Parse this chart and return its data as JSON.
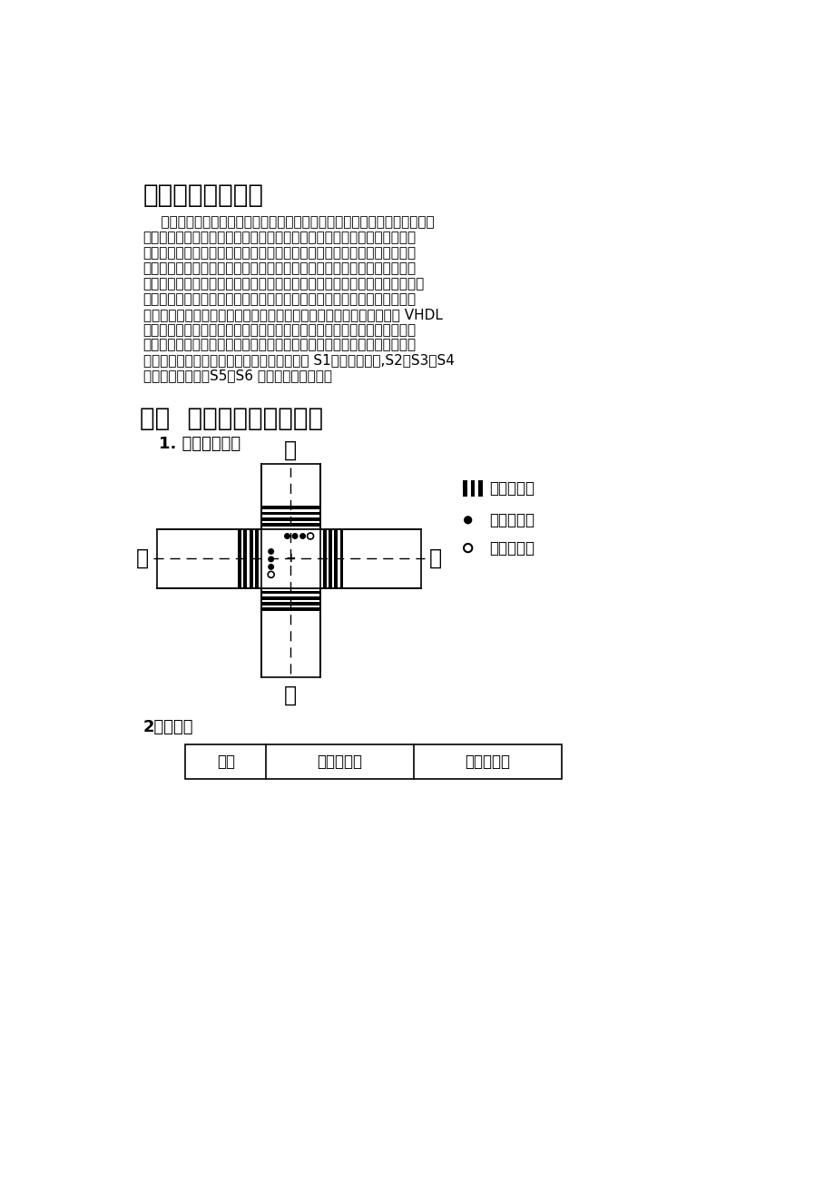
{
  "title3": "三、设计方案选择",
  "lines3": [
    "    由于该交通控制电路比较复杂，用现有库元器件可能导致耗用较多器件且其",
    "功能又不能完全达到设计要求，还可能出现其他的意想不到的情况，造成电",
    "路复杂，设计困难，难以排错等问题。而由于该系统的状态有限而且简单可",
    "以一一列举，故采用状态机设计方案。状态机设计使得设计更为简单明了，",
    "系统容错能力也大为提升，而且状态机顺序控制灵活，结构简单，便于修改，",
    "同时其对付竞争冒险的现象能力很强，运行速度快，使其成为数字系统设计",
    "中的重要部分，也是调高效率的重要途径。因此本次设计采用状态机的 VHDL",
    "描述，生成相应的器件模块。最后将器件模块和少数的库元件有机的结合在",
    "一起，构成总的原理图，从而形成了交通灯控制系统。而在本次交通灯的控",
    "制电路设计中，一共设置有六种状态，分别为 S1（初始状态）,S2，S3，S4",
    "为正常工作状态；S5，S6 为故障时候的状态。"
  ],
  "title4": "四、  设计思路和框架分析",
  "subtitle4_1": "1. 交通路口位置",
  "leg1_text": "：人行过道",
  "leg2_text": "：红绿黄灯",
  "leg3_text": "：人行过道",
  "table_title": "2、状态表",
  "table_headers": [
    "状态",
    "东西主干道",
    "南北主干道"
  ],
  "dir_east": "东",
  "dir_west": "西",
  "dir_south": "南",
  "dir_north": "北",
  "bg_color": "#ffffff",
  "text_color": "#000000"
}
